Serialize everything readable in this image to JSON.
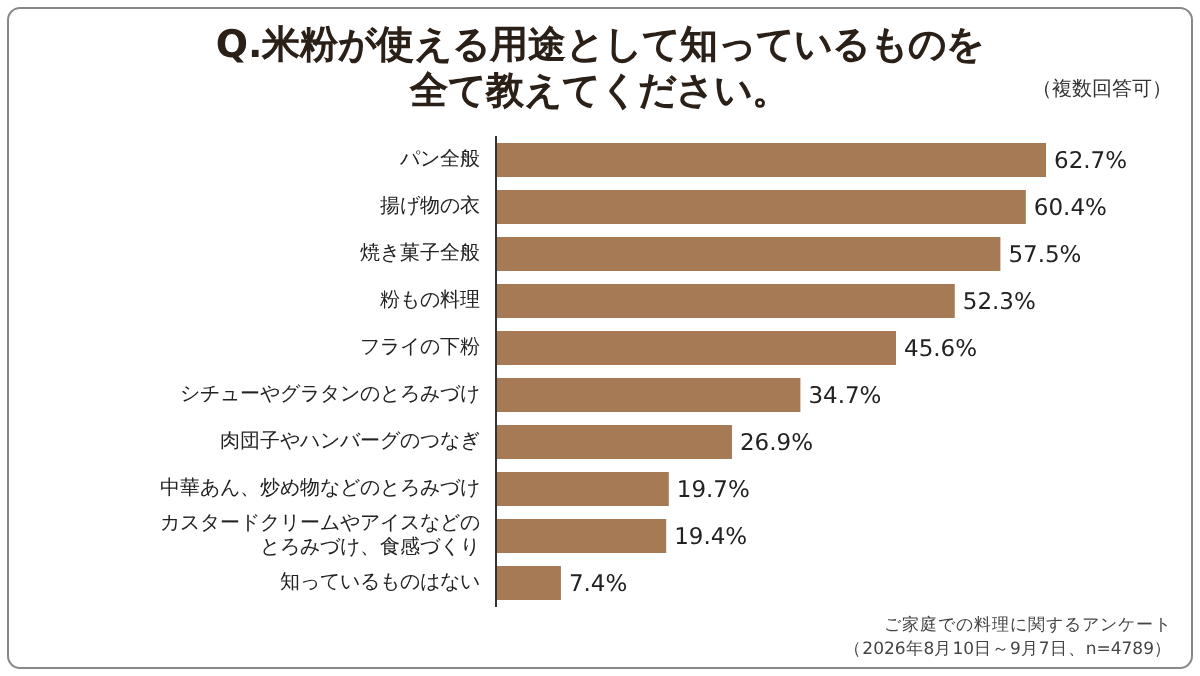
{
  "chart_data": {
    "type": "bar",
    "orientation": "horizontal",
    "title": "Q.米粉が使える用途として知っているものを全て教えてください。",
    "subtitle": "（複数回答可）",
    "categories": [
      "パン全般",
      "揚げ物の衣",
      "焼き菓子全般",
      "粉もの料理",
      "フライの下粉",
      "シチューやグラタンのとろみづけ",
      "肉団子やハンバーグのつなぎ",
      "中華あん、炒め物などのとろみづけ",
      "カスタードクリームやアイスなどのとろみづけ、食感づくり",
      "知っているものはない"
    ],
    "values": [
      62.7,
      60.4,
      57.5,
      52.3,
      45.6,
      34.7,
      26.9,
      19.7,
      19.4,
      7.4
    ],
    "value_labels": [
      "62.7%",
      "60.4%",
      "57.5%",
      "52.3%",
      "45.6%",
      "34.7%",
      "26.9%",
      "19.7%",
      "19.4%",
      "7.4%"
    ],
    "color": "#a57a55",
    "annotations": [
      "ご家庭での料理に関するアンケート",
      "（2026年8月10日～9月7日、n=4789）"
    ]
  }
}
